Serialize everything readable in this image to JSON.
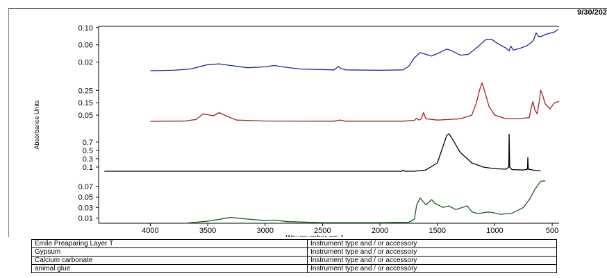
{
  "date": "9/30/202",
  "colors": {
    "blue": "#1a2a8c",
    "red": "#a02020",
    "black": "#000000",
    "green": "#1d5a1d"
  },
  "legend_rows": [
    {
      "name": "Emile Preaparing Layer T",
      "info": "Instrument type and / or accessory"
    },
    {
      "name": "Gypsum",
      "info": "Instrument type and / or accessory"
    },
    {
      "name": "Calcium carbonate",
      "info": "Instrument type and / or accessory"
    },
    {
      "name": "animal glue",
      "info": "Instrument type and / or accessory"
    }
  ],
  "chart_data": {
    "type": "line",
    "xlabel": "Wavenumber cm-1",
    "ylabel": "Absorbance Units",
    "xlim": [
      4450,
      440
    ],
    "x_ticks": [
      "4000",
      "3500",
      "3000",
      "2500",
      "2000",
      "1500",
      "1000",
      "500"
    ],
    "x_tick_values": [
      4000,
      3500,
      3000,
      2500,
      2000,
      1500,
      1000,
      500
    ],
    "grid": false,
    "panels": [
      {
        "series_name": "Emile Preaparing Layer T",
        "color": "blue",
        "ylim": [
          0.0,
          0.103
        ],
        "y_ticks": [
          "0.10",
          "0.06",
          "0.02"
        ],
        "y_tick_values": [
          0.1,
          0.06,
          0.02
        ],
        "points": [
          [
            4000,
            0.0
          ],
          [
            3800,
            0.001
          ],
          [
            3650,
            0.004
          ],
          [
            3500,
            0.014
          ],
          [
            3400,
            0.016
          ],
          [
            3300,
            0.012
          ],
          [
            3150,
            0.007
          ],
          [
            3000,
            0.009
          ],
          [
            2920,
            0.012
          ],
          [
            2850,
            0.009
          ],
          [
            2700,
            0.004
          ],
          [
            2400,
            0.002
          ],
          [
            2360,
            0.01
          ],
          [
            2340,
            0.005
          ],
          [
            2300,
            0.002
          ],
          [
            2000,
            0.001
          ],
          [
            1800,
            0.002
          ],
          [
            1750,
            0.01
          ],
          [
            1700,
            0.03
          ],
          [
            1650,
            0.042
          ],
          [
            1600,
            0.038
          ],
          [
            1550,
            0.034
          ],
          [
            1480,
            0.042
          ],
          [
            1420,
            0.05
          ],
          [
            1380,
            0.047
          ],
          [
            1300,
            0.036
          ],
          [
            1230,
            0.038
          ],
          [
            1150,
            0.055
          ],
          [
            1080,
            0.072
          ],
          [
            1030,
            0.073
          ],
          [
            980,
            0.064
          ],
          [
            900,
            0.052
          ],
          [
            875,
            0.046
          ],
          [
            860,
            0.057
          ],
          [
            840,
            0.048
          ],
          [
            780,
            0.052
          ],
          [
            720,
            0.058
          ],
          [
            680,
            0.066
          ],
          [
            660,
            0.072
          ],
          [
            640,
            0.088
          ],
          [
            620,
            0.08
          ],
          [
            600,
            0.079
          ],
          [
            560,
            0.084
          ],
          [
            520,
            0.087
          ],
          [
            480,
            0.09
          ],
          [
            450,
            0.096
          ]
        ]
      },
      {
        "series_name": "Gypsum",
        "color": "red",
        "ylim": [
          0.0,
          0.33
        ],
        "y_ticks": [
          "0.25",
          "0.15",
          "0.05"
        ],
        "y_tick_values": [
          0.25,
          0.15,
          0.05
        ],
        "points": [
          [
            4000,
            0.0
          ],
          [
            3700,
            0.002
          ],
          [
            3600,
            0.015
          ],
          [
            3540,
            0.06
          ],
          [
            3480,
            0.05
          ],
          [
            3450,
            0.045
          ],
          [
            3400,
            0.07
          ],
          [
            3330,
            0.04
          ],
          [
            3250,
            0.01
          ],
          [
            3000,
            0.002
          ],
          [
            2400,
            0.001
          ],
          [
            2350,
            0.01
          ],
          [
            2300,
            0.001
          ],
          [
            1800,
            0.001
          ],
          [
            1700,
            0.008
          ],
          [
            1680,
            0.025
          ],
          [
            1660,
            0.01
          ],
          [
            1640,
            0.02
          ],
          [
            1620,
            0.07
          ],
          [
            1600,
            0.02
          ],
          [
            1500,
            0.01
          ],
          [
            1300,
            0.02
          ],
          [
            1200,
            0.05
          ],
          [
            1160,
            0.15
          ],
          [
            1130,
            0.26
          ],
          [
            1110,
            0.31
          ],
          [
            1090,
            0.25
          ],
          [
            1050,
            0.12
          ],
          [
            1000,
            0.05
          ],
          [
            900,
            0.02
          ],
          [
            800,
            0.02
          ],
          [
            700,
            0.03
          ],
          [
            680,
            0.12
          ],
          [
            668,
            0.16
          ],
          [
            650,
            0.09
          ],
          [
            630,
            0.06
          ],
          [
            610,
            0.18
          ],
          [
            600,
            0.25
          ],
          [
            590,
            0.23
          ],
          [
            560,
            0.14
          ],
          [
            520,
            0.1
          ],
          [
            480,
            0.15
          ],
          [
            440,
            0.16
          ]
        ]
      },
      {
        "series_name": "Calcium carbonate",
        "color": "black",
        "ylim": [
          0.0,
          0.98
        ],
        "y_ticks": [
          "0.7",
          "0.5",
          "0.3",
          "0.1"
        ],
        "y_tick_values": [
          0.7,
          0.5,
          0.3,
          0.1
        ],
        "points": [
          [
            4400,
            0.0
          ],
          [
            3000,
            0.0
          ],
          [
            2000,
            0.0
          ],
          [
            1810,
            0.0
          ],
          [
            1797,
            0.03
          ],
          [
            1785,
            0.0
          ],
          [
            1700,
            0.0
          ],
          [
            1600,
            0.03
          ],
          [
            1500,
            0.2
          ],
          [
            1450,
            0.6
          ],
          [
            1420,
            0.85
          ],
          [
            1400,
            0.9
          ],
          [
            1380,
            0.82
          ],
          [
            1300,
            0.45
          ],
          [
            1200,
            0.2
          ],
          [
            1100,
            0.1
          ],
          [
            1000,
            0.06
          ],
          [
            900,
            0.05
          ],
          [
            878,
            0.1
          ],
          [
            875,
            0.89
          ],
          [
            870,
            0.1
          ],
          [
            850,
            0.04
          ],
          [
            750,
            0.03
          ],
          [
            715,
            0.05
          ],
          [
            712,
            0.33
          ],
          [
            708,
            0.05
          ],
          [
            650,
            0.02
          ],
          [
            600,
            0.01
          ]
        ]
      },
      {
        "series_name": "animal glue",
        "color": "green",
        "ylim": [
          0.0,
          0.082
        ],
        "y_ticks": [
          "0.07",
          "0.05",
          "0.03",
          "0.01"
        ],
        "y_tick_values": [
          0.07,
          0.05,
          0.03,
          0.01
        ],
        "points": [
          [
            3700,
            0.0
          ],
          [
            3500,
            0.004
          ],
          [
            3300,
            0.011
          ],
          [
            3150,
            0.008
          ],
          [
            3000,
            0.005
          ],
          [
            2920,
            0.006
          ],
          [
            2800,
            0.003
          ],
          [
            2500,
            0.001
          ],
          [
            2000,
            0.001
          ],
          [
            1750,
            0.002
          ],
          [
            1700,
            0.008
          ],
          [
            1680,
            0.035
          ],
          [
            1650,
            0.048
          ],
          [
            1600,
            0.035
          ],
          [
            1550,
            0.045
          ],
          [
            1520,
            0.038
          ],
          [
            1450,
            0.03
          ],
          [
            1400,
            0.033
          ],
          [
            1340,
            0.026
          ],
          [
            1240,
            0.033
          ],
          [
            1200,
            0.022
          ],
          [
            1150,
            0.018
          ],
          [
            1080,
            0.021
          ],
          [
            1030,
            0.021
          ],
          [
            950,
            0.017
          ],
          [
            850,
            0.019
          ],
          [
            750,
            0.03
          ],
          [
            700,
            0.045
          ],
          [
            650,
            0.065
          ],
          [
            600,
            0.08
          ],
          [
            560,
            0.081
          ]
        ]
      }
    ]
  }
}
